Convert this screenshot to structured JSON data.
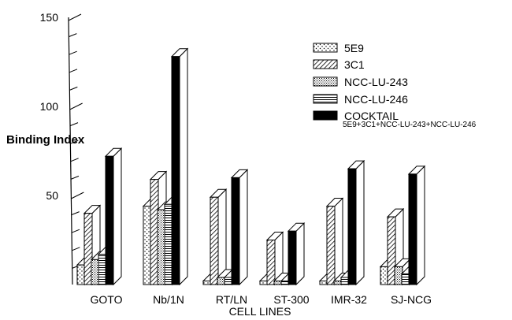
{
  "chart_data": {
    "type": "bar",
    "style": "3d-grouped-bars",
    "title": "",
    "xlabel": "CELL LINES",
    "ylabel": "Binding Index",
    "ylim": [
      0,
      150
    ],
    "yticks": [
      "50",
      "100",
      "150"
    ],
    "grid": false,
    "legend_position": "top-right",
    "categories": [
      "GOTO",
      "Nb/1N",
      "RT/LN",
      "ST-300",
      "IMR-32",
      "SJ-NCG"
    ],
    "series": [
      {
        "name": "5E9",
        "fill": "dots",
        "values": [
          11,
          44,
          2,
          2,
          2,
          10
        ]
      },
      {
        "name": "3C1",
        "fill": "diagonal-hatch",
        "values": [
          40,
          59,
          49,
          25,
          44,
          38
        ]
      },
      {
        "name": "NCC-LU-243",
        "fill": "fine-dots",
        "values": [
          14,
          42,
          4,
          2,
          2,
          10
        ]
      },
      {
        "name": "NCC-LU-246",
        "fill": "horizontal-lines",
        "values": [
          17,
          45,
          4,
          2,
          4,
          6
        ]
      },
      {
        "name": "COCKTAIL",
        "fill": "solid-black",
        "values": [
          72,
          128,
          60,
          30,
          65,
          62
        ]
      }
    ],
    "legend_note": "5E9+3C1+NCC-LU-243+NCC-LU-246"
  },
  "colors": {
    "ink": "#000000",
    "paper": "#ffffff"
  }
}
